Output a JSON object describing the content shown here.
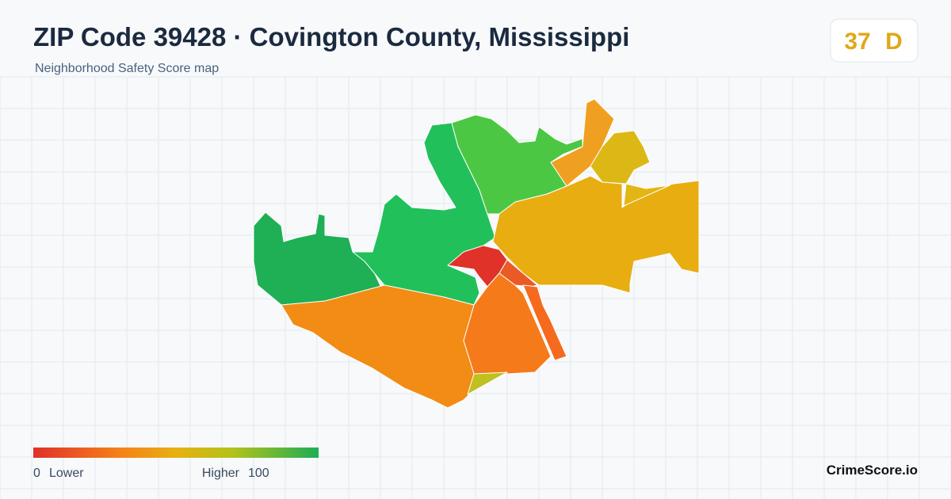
{
  "header": {
    "title": "ZIP Code 39428 · Covington County, Mississippi",
    "subtitle": "Neighborhood Safety Score map",
    "score": 37,
    "grade": "D"
  },
  "legend": {
    "min": 0,
    "min_label": "Lower",
    "max_label": "Higher",
    "max": 100
  },
  "brand": "CrimeScore.io"
}
